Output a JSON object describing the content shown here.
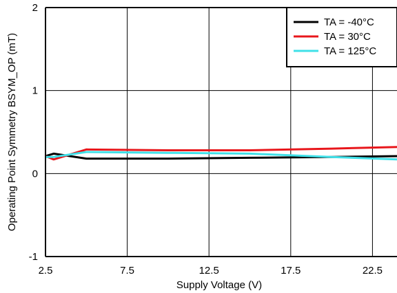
{
  "chart_data": {
    "type": "line",
    "xlabel": "Supply Voltage (V)",
    "ylabel": "Operating Point Symmetry BSYM_OP (mT)",
    "xlim": [
      2.5,
      24
    ],
    "ylim": [
      -1,
      2
    ],
    "x_ticks": [
      2.5,
      7.5,
      12.5,
      17.5,
      22.5
    ],
    "x_tick_labels": [
      "2.5",
      "7.5",
      "12.5",
      "17.5",
      "22.5"
    ],
    "y_ticks": [
      -1,
      0,
      1,
      2
    ],
    "y_tick_labels": [
      "-1",
      "0",
      "1",
      "2"
    ],
    "grid": true,
    "legend_position": "top-right",
    "series": [
      {
        "name": "TA = -40°C",
        "color": "#000000",
        "x": [
          2.5,
          3.0,
          5.0,
          10.0,
          15.0,
          20.0,
          24.0
        ],
        "y": [
          0.21,
          0.24,
          0.18,
          0.18,
          0.19,
          0.2,
          0.21
        ]
      },
      {
        "name": "TA = 30°C",
        "color": "#e8161b",
        "x": [
          2.5,
          3.0,
          5.0,
          10.0,
          15.0,
          20.0,
          24.0
        ],
        "y": [
          0.21,
          0.17,
          0.29,
          0.28,
          0.28,
          0.3,
          0.32
        ]
      },
      {
        "name": "TA = 125°C",
        "color": "#3fe0e8",
        "x": [
          2.5,
          3.0,
          5.0,
          10.0,
          15.0,
          20.0,
          24.0
        ],
        "y": [
          0.2,
          0.2,
          0.26,
          0.25,
          0.24,
          0.2,
          0.17
        ]
      }
    ]
  }
}
